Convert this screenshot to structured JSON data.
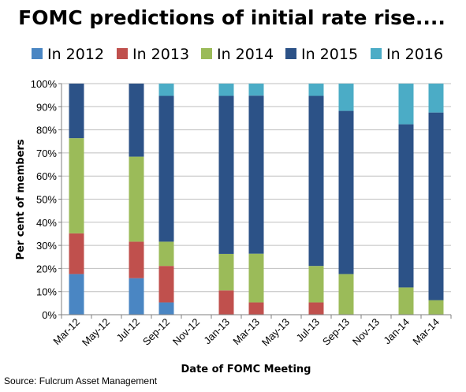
{
  "chart_data": {
    "type": "bar",
    "stacked": true,
    "title": "FOMC predictions of initial rate rise....",
    "xlabel": "Date of FOMC Meeting",
    "ylabel": "Per cent of members",
    "ylim": [
      0,
      100
    ],
    "yticks": [
      "0%",
      "10%",
      "20%",
      "30%",
      "40%",
      "50%",
      "60%",
      "70%",
      "80%",
      "90%",
      "100%"
    ],
    "grid": true,
    "legend_position": "top",
    "categories": [
      "Mar-12",
      "May-12",
      "Jul-12",
      "Sep-12",
      "Nov-12",
      "Jan-13",
      "Mar-13",
      "May-13",
      "Jul-13",
      "Sep-13",
      "Nov-13",
      "Jan-14",
      "Mar-14"
    ],
    "series": [
      {
        "name": "In 2012",
        "color": "#4a86c3",
        "values": [
          17.6,
          0,
          15.8,
          5.3,
          0,
          0,
          0,
          0,
          0,
          0,
          0,
          0,
          0
        ]
      },
      {
        "name": "In 2013",
        "color": "#c0504d",
        "values": [
          17.6,
          0,
          15.8,
          15.8,
          0,
          10.5,
          5.3,
          0,
          5.3,
          0,
          0,
          0,
          0
        ]
      },
      {
        "name": "In 2014",
        "color": "#9bbb59",
        "values": [
          41.2,
          0,
          36.8,
          10.5,
          0,
          15.8,
          21.1,
          0,
          15.8,
          17.6,
          0,
          11.8,
          6.3
        ]
      },
      {
        "name": "In 2015",
        "color": "#2c5287",
        "values": [
          23.6,
          0,
          31.6,
          63.1,
          0,
          68.4,
          68.4,
          0,
          73.6,
          70.6,
          0,
          70.6,
          81.2
        ]
      },
      {
        "name": "In 2016",
        "color": "#4bacc6",
        "values": [
          0,
          0,
          0,
          5.3,
          0,
          5.3,
          5.2,
          0,
          5.3,
          11.8,
          0,
          17.6,
          12.5
        ]
      }
    ]
  },
  "source": "Source: Fulcrum Asset Management"
}
